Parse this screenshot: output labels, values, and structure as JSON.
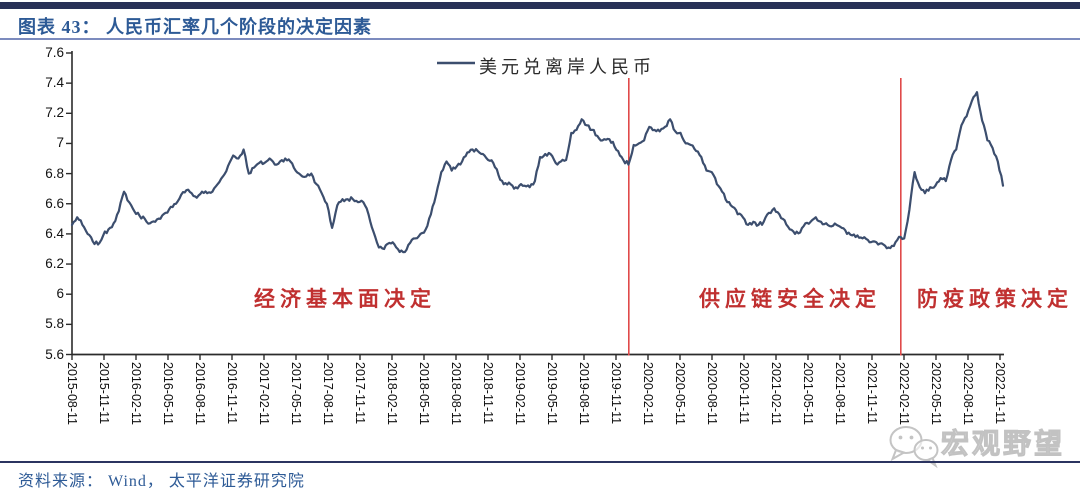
{
  "header": {
    "title": "图表 43： 人民币汇率几个阶段的决定因素"
  },
  "footer": {
    "source": "资料来源： Wind， 太平洋证券研究院"
  },
  "watermark": {
    "icon": "wechat-icon",
    "text": "宏观野望"
  },
  "chart_data": {
    "type": "line",
    "title": "",
    "xlabel": "",
    "ylabel": "",
    "grid": false,
    "legend_position": "top-center",
    "legend": [
      {
        "name": "美元兑离岸人民币",
        "color": "#3C4E6E"
      }
    ],
    "ylim": [
      5.6,
      7.6
    ],
    "y_ticks": [
      "7.6",
      "7.4",
      "7.2",
      "7",
      "6.8",
      "6.6",
      "6.4",
      "6.2",
      "6",
      "5.8",
      "5.6"
    ],
    "x_ticks": [
      "2015-08-11",
      "2015-11-11",
      "2016-02-11",
      "2016-05-11",
      "2016-08-11",
      "2016-11-11",
      "2017-02-11",
      "2017-05-11",
      "2017-08-11",
      "2017-11-11",
      "2018-02-11",
      "2018-05-11",
      "2018-08-11",
      "2018-11-11",
      "2019-02-11",
      "2019-05-11",
      "2019-08-11",
      "2019-11-11",
      "2020-02-11",
      "2020-05-11",
      "2020-08-11",
      "2020-11-11",
      "2021-02-11",
      "2021-05-11",
      "2021-08-11",
      "2021-11-11",
      "2022-02-11",
      "2022-05-11",
      "2022-08-11",
      "2022-11-11"
    ],
    "points_per_tick": 6,
    "series": [
      {
        "name": "美元兑离岸人民币",
        "color": "#3C4E6E",
        "values": [
          6.46,
          6.51,
          6.46,
          6.4,
          6.35,
          6.33,
          6.39,
          6.43,
          6.47,
          6.55,
          6.68,
          6.61,
          6.55,
          6.52,
          6.5,
          6.47,
          6.48,
          6.5,
          6.54,
          6.58,
          6.6,
          6.66,
          6.69,
          6.67,
          6.64,
          6.68,
          6.67,
          6.68,
          6.73,
          6.78,
          6.85,
          6.92,
          6.9,
          6.96,
          6.8,
          6.84,
          6.87,
          6.87,
          6.9,
          6.86,
          6.88,
          6.9,
          6.88,
          6.82,
          6.79,
          6.78,
          6.8,
          6.73,
          6.67,
          6.6,
          6.44,
          6.59,
          6.63,
          6.63,
          6.63,
          6.61,
          6.61,
          6.53,
          6.41,
          6.31,
          6.3,
          6.34,
          6.33,
          6.28,
          6.28,
          6.34,
          6.37,
          6.4,
          6.43,
          6.53,
          6.66,
          6.81,
          6.88,
          6.82,
          6.85,
          6.88,
          6.94,
          6.96,
          6.95,
          6.93,
          6.89,
          6.87,
          6.79,
          6.73,
          6.74,
          6.7,
          6.72,
          6.72,
          6.71,
          6.75,
          6.91,
          6.93,
          6.93,
          6.87,
          6.88,
          6.89,
          7.07,
          7.09,
          7.16,
          7.12,
          7.09,
          7.05,
          7.02,
          7.03,
          7.01,
          6.95,
          6.89,
          6.86,
          6.99,
          7.0,
          7.02,
          7.11,
          7.09,
          7.08,
          7.11,
          7.16,
          7.08,
          7.07,
          7.0,
          6.99,
          6.95,
          6.91,
          6.82,
          6.81,
          6.73,
          6.68,
          6.61,
          6.58,
          6.53,
          6.51,
          6.46,
          6.48,
          6.46,
          6.48,
          6.54,
          6.57,
          6.53,
          6.49,
          6.43,
          6.4,
          6.41,
          6.47,
          6.48,
          6.51,
          6.48,
          6.47,
          6.45,
          6.46,
          6.44,
          6.4,
          6.39,
          6.39,
          6.37,
          6.36,
          6.35,
          6.33,
          6.33,
          6.31,
          6.32,
          6.38,
          6.37,
          6.56,
          6.81,
          6.71,
          6.67,
          6.71,
          6.72,
          6.77,
          6.75,
          6.89,
          6.96,
          7.12,
          7.18,
          7.28,
          7.34,
          7.15,
          7.02,
          6.97,
          6.88,
          6.72
        ]
      }
    ],
    "phases": [
      {
        "label": "经济基本面决定"
      },
      {
        "label": "供应链安全决定"
      },
      {
        "label": "防疫政策决定"
      }
    ],
    "phase_dividers_tick": [
      17.4,
      25.9
    ],
    "colors": {
      "annotation_red": "#C03030",
      "divider_red": "#E04A4A",
      "axis": "#2b2b2b"
    }
  }
}
